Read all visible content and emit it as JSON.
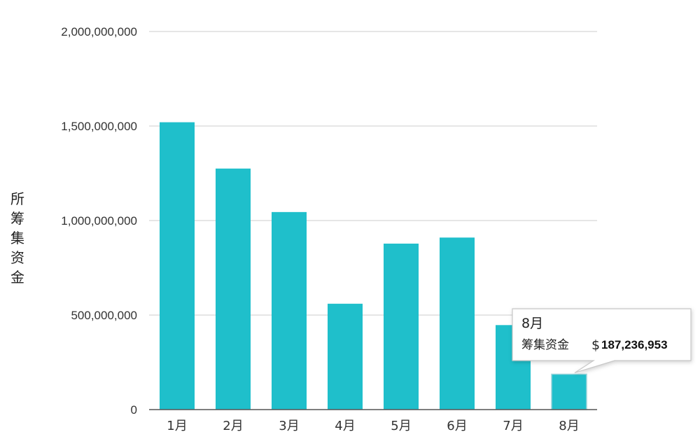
{
  "chart_data": {
    "type": "bar",
    "categories": [
      "1月",
      "2月",
      "3月",
      "4月",
      "5月",
      "6月",
      "7月",
      "8月"
    ],
    "values": [
      1520000000,
      1275000000,
      1045000000,
      560000000,
      878000000,
      910000000,
      447000000,
      187236953
    ],
    "ylabel": "所筹集资金",
    "ylim": [
      0,
      2000000000
    ],
    "yticks": [
      0,
      500000000,
      1000000000,
      1500000000,
      2000000000
    ],
    "ytick_labels": [
      "0",
      "500,000,000",
      "1,000,000,000",
      "1,500,000,000",
      "2,000,000,000"
    ],
    "grid": true,
    "tooltip": {
      "category": "8月",
      "series_label": "筹集资金",
      "currency": "$",
      "value_label": "187,236,953"
    }
  },
  "colors": {
    "bar": "#1fbfcb",
    "grid": "#d6d6d6",
    "axis": "#555555",
    "text": "#333333"
  }
}
